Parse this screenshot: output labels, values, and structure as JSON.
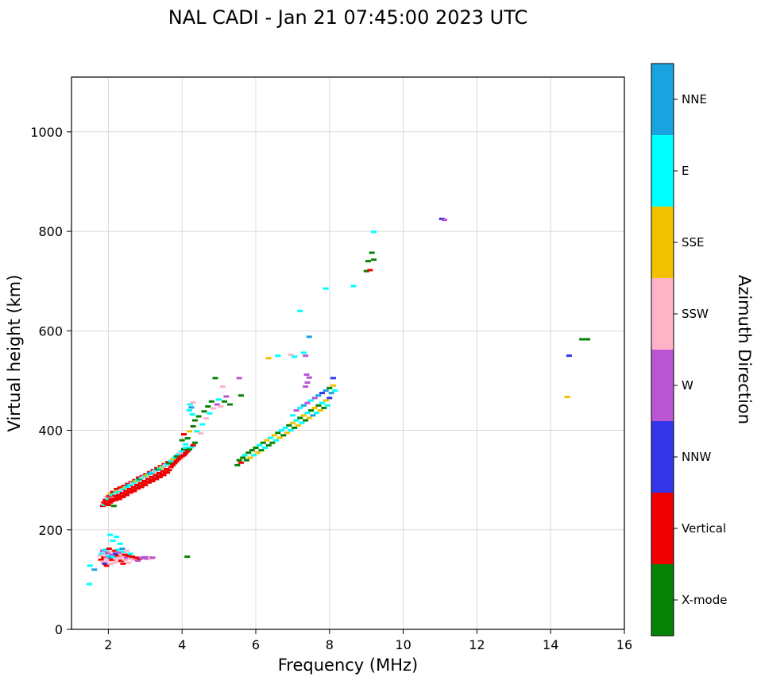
{
  "chart_data": {
    "type": "scatter",
    "title": "NAL CADI - Jan 21 07:45:00 2023 UTC",
    "xlabel": "Frequency (MHz)",
    "ylabel": "Virtual height (km)",
    "colorbar_label": "Azimuth Direction",
    "xlim": [
      1,
      16
    ],
    "ylim": [
      0,
      1110
    ],
    "xticks": [
      2,
      4,
      6,
      8,
      10,
      12,
      14,
      16
    ],
    "yticks": [
      0,
      200,
      400,
      600,
      800,
      1000
    ],
    "grid": true,
    "marker": "horizontal-dash",
    "palette": [
      {
        "key": "NNE",
        "color": "#19a3e1"
      },
      {
        "key": "E",
        "color": "#00ffff"
      },
      {
        "key": "SSE",
        "color": "#f2c200"
      },
      {
        "key": "SSW",
        "color": "#ffb3c6"
      },
      {
        "key": "W",
        "color": "#ba55d3"
      },
      {
        "key": "NNW",
        "color": "#3434e8"
      },
      {
        "key": "Vertical",
        "color": "#ee0000"
      },
      {
        "key": "X-mode",
        "color": "#068206"
      }
    ],
    "points": [
      [
        1.48,
        91,
        1
      ],
      [
        1.5,
        128,
        1
      ],
      [
        1.62,
        120,
        0
      ],
      [
        1.78,
        148,
        3
      ],
      [
        1.8,
        140,
        6
      ],
      [
        1.82,
        152,
        1
      ],
      [
        1.85,
        136,
        3
      ],
      [
        1.85,
        158,
        4
      ],
      [
        1.88,
        144,
        6
      ],
      [
        1.9,
        132,
        5
      ],
      [
        1.9,
        150,
        3
      ],
      [
        1.92,
        160,
        1
      ],
      [
        1.95,
        142,
        3
      ],
      [
        1.95,
        128,
        6
      ],
      [
        1.98,
        154,
        4
      ],
      [
        2.0,
        138,
        3
      ],
      [
        2.0,
        148,
        1
      ],
      [
        2.02,
        162,
        6
      ],
      [
        2.05,
        132,
        3
      ],
      [
        2.05,
        144,
        0
      ],
      [
        2.05,
        190,
        1
      ],
      [
        2.08,
        156,
        3
      ],
      [
        2.1,
        140,
        6
      ],
      [
        2.1,
        150,
        4
      ],
      [
        2.12,
        178,
        1
      ],
      [
        2.15,
        134,
        3
      ],
      [
        2.15,
        146,
        1
      ],
      [
        2.18,
        158,
        6
      ],
      [
        2.2,
        142,
        3
      ],
      [
        2.2,
        152,
        5
      ],
      [
        2.22,
        186,
        1
      ],
      [
        2.25,
        136,
        3
      ],
      [
        2.25,
        148,
        6
      ],
      [
        2.28,
        160,
        1
      ],
      [
        2.3,
        144,
        3
      ],
      [
        2.3,
        154,
        4
      ],
      [
        2.32,
        172,
        1
      ],
      [
        2.35,
        138,
        6
      ],
      [
        2.35,
        150,
        3
      ],
      [
        2.38,
        162,
        0
      ],
      [
        2.4,
        146,
        3
      ],
      [
        2.4,
        132,
        6
      ],
      [
        2.42,
        156,
        1
      ],
      [
        2.45,
        140,
        3
      ],
      [
        2.45,
        150,
        6
      ],
      [
        2.5,
        144,
        4
      ],
      [
        2.5,
        158,
        3
      ],
      [
        2.55,
        148,
        6
      ],
      [
        2.55,
        134,
        3
      ],
      [
        2.6,
        152,
        1
      ],
      [
        2.6,
        142,
        3
      ],
      [
        2.65,
        146,
        6
      ],
      [
        2.7,
        140,
        3
      ],
      [
        2.75,
        144,
        6
      ],
      [
        2.8,
        138,
        4
      ],
      [
        2.85,
        142,
        6
      ],
      [
        2.9,
        144,
        4
      ],
      [
        2.95,
        143,
        4
      ],
      [
        3.0,
        145,
        4
      ],
      [
        3.05,
        142,
        4
      ],
      [
        3.1,
        144,
        4
      ],
      [
        3.15,
        143,
        3
      ],
      [
        3.2,
        144,
        4
      ],
      [
        4.14,
        146,
        7
      ],
      [
        1.85,
        248,
        6
      ],
      [
        1.88,
        255,
        6
      ],
      [
        1.9,
        250,
        1
      ],
      [
        1.92,
        260,
        6
      ],
      [
        1.95,
        252,
        6
      ],
      [
        1.95,
        266,
        3
      ],
      [
        1.98,
        258,
        6
      ],
      [
        2.0,
        250,
        6
      ],
      [
        2.0,
        262,
        1
      ],
      [
        2.02,
        268,
        6
      ],
      [
        2.05,
        255,
        6
      ],
      [
        2.05,
        272,
        2
      ],
      [
        2.08,
        262,
        6
      ],
      [
        2.1,
        258,
        6
      ],
      [
        2.1,
        270,
        1
      ],
      [
        2.12,
        276,
        6
      ],
      [
        2.15,
        262,
        6
      ],
      [
        2.15,
        248,
        7
      ],
      [
        2.18,
        268,
        6
      ],
      [
        2.2,
        260,
        6
      ],
      [
        2.2,
        275,
        1
      ],
      [
        2.22,
        282,
        6
      ],
      [
        2.25,
        265,
        6
      ],
      [
        2.25,
        278,
        2
      ],
      [
        2.28,
        270,
        6
      ],
      [
        2.3,
        262,
        6
      ],
      [
        2.3,
        278,
        1
      ],
      [
        2.32,
        285,
        6
      ],
      [
        2.35,
        268,
        6
      ],
      [
        2.35,
        280,
        3
      ],
      [
        2.38,
        274,
        6
      ],
      [
        2.4,
        266,
        6
      ],
      [
        2.4,
        282,
        1
      ],
      [
        2.42,
        288,
        6
      ],
      [
        2.45,
        272,
        6
      ],
      [
        2.45,
        285,
        2
      ],
      [
        2.48,
        278,
        6
      ],
      [
        2.5,
        270,
        6
      ],
      [
        2.5,
        286,
        1
      ],
      [
        2.52,
        292,
        6
      ],
      [
        2.55,
        276,
        6
      ],
      [
        2.55,
        290,
        0
      ],
      [
        2.58,
        282,
        6
      ],
      [
        2.6,
        275,
        6
      ],
      [
        2.6,
        290,
        1
      ],
      [
        2.62,
        296,
        6
      ],
      [
        2.65,
        280,
        6
      ],
      [
        2.65,
        294,
        3
      ],
      [
        2.68,
        286,
        6
      ],
      [
        2.7,
        278,
        6
      ],
      [
        2.7,
        295,
        1
      ],
      [
        2.72,
        300,
        6
      ],
      [
        2.75,
        284,
        6
      ],
      [
        2.75,
        298,
        2
      ],
      [
        2.78,
        290,
        6
      ],
      [
        2.8,
        283,
        6
      ],
      [
        2.8,
        300,
        1
      ],
      [
        2.82,
        305,
        6
      ],
      [
        2.85,
        288,
        6
      ],
      [
        2.85,
        302,
        7
      ],
      [
        2.88,
        294,
        6
      ],
      [
        2.9,
        286,
        6
      ],
      [
        2.9,
        304,
        1
      ],
      [
        2.92,
        308,
        6
      ],
      [
        2.95,
        292,
        6
      ],
      [
        2.95,
        306,
        3
      ],
      [
        2.98,
        298,
        6
      ],
      [
        3.0,
        290,
        6
      ],
      [
        3.0,
        308,
        1
      ],
      [
        3.02,
        312,
        6
      ],
      [
        3.05,
        296,
        6
      ],
      [
        3.05,
        310,
        2
      ],
      [
        3.08,
        302,
        6
      ],
      [
        3.1,
        295,
        6
      ],
      [
        3.1,
        312,
        1
      ],
      [
        3.12,
        316,
        6
      ],
      [
        3.15,
        300,
        6
      ],
      [
        3.15,
        314,
        0
      ],
      [
        3.18,
        306,
        6
      ],
      [
        3.2,
        298,
        6
      ],
      [
        3.2,
        316,
        1
      ],
      [
        3.22,
        320,
        6
      ],
      [
        3.25,
        304,
        6
      ],
      [
        3.25,
        318,
        3
      ],
      [
        3.28,
        310,
        6
      ],
      [
        3.3,
        302,
        6
      ],
      [
        3.3,
        320,
        1
      ],
      [
        3.32,
        324,
        6
      ],
      [
        3.35,
        308,
        6
      ],
      [
        3.35,
        322,
        7
      ],
      [
        3.38,
        314,
        6
      ],
      [
        3.4,
        306,
        6
      ],
      [
        3.4,
        324,
        1
      ],
      [
        3.42,
        328,
        6
      ],
      [
        3.45,
        312,
        6
      ],
      [
        3.45,
        326,
        2
      ],
      [
        3.48,
        318,
        6
      ],
      [
        3.5,
        310,
        6
      ],
      [
        3.5,
        328,
        1
      ],
      [
        3.52,
        332,
        6
      ],
      [
        3.55,
        316,
        6
      ],
      [
        3.55,
        330,
        3
      ],
      [
        3.58,
        322,
        6
      ],
      [
        3.6,
        315,
        6
      ],
      [
        3.6,
        332,
        1
      ],
      [
        3.62,
        336,
        6
      ],
      [
        3.65,
        320,
        6
      ],
      [
        3.65,
        334,
        7
      ],
      [
        3.7,
        326,
        6
      ],
      [
        3.7,
        338,
        1
      ],
      [
        3.75,
        330,
        6
      ],
      [
        3.75,
        342,
        2
      ],
      [
        3.8,
        334,
        6
      ],
      [
        3.8,
        345,
        1
      ],
      [
        3.85,
        338,
        6
      ],
      [
        3.85,
        348,
        7
      ],
      [
        3.9,
        342,
        6
      ],
      [
        3.9,
        352,
        1
      ],
      [
        3.95,
        345,
        6
      ],
      [
        3.95,
        355,
        3
      ],
      [
        4.0,
        348,
        6
      ],
      [
        4.0,
        358,
        1
      ],
      [
        4.05,
        350,
        6
      ],
      [
        4.05,
        362,
        7
      ],
      [
        4.1,
        354,
        6
      ],
      [
        4.1,
        365,
        1
      ],
      [
        4.15,
        358,
        6
      ],
      [
        4.2,
        362,
        7
      ],
      [
        4.25,
        366,
        1
      ],
      [
        4.3,
        370,
        6
      ],
      [
        4.35,
        375,
        7
      ],
      [
        4.0,
        380,
        7
      ],
      [
        4.05,
        392,
        6
      ],
      [
        4.1,
        372,
        1
      ],
      [
        4.15,
        384,
        7
      ],
      [
        4.2,
        398,
        2
      ],
      [
        4.2,
        440,
        1
      ],
      [
        4.22,
        452,
        1
      ],
      [
        4.25,
        446,
        0
      ],
      [
        4.28,
        432,
        1
      ],
      [
        4.3,
        456,
        3
      ],
      [
        4.3,
        408,
        7
      ],
      [
        4.35,
        420,
        7
      ],
      [
        4.4,
        398,
        1
      ],
      [
        4.45,
        428,
        7
      ],
      [
        4.5,
        394,
        3
      ],
      [
        4.55,
        412,
        1
      ],
      [
        4.6,
        438,
        7
      ],
      [
        4.65,
        424,
        3
      ],
      [
        4.7,
        448,
        7
      ],
      [
        4.75,
        434,
        1
      ],
      [
        4.8,
        458,
        7
      ],
      [
        4.85,
        444,
        3
      ],
      [
        4.9,
        505,
        7
      ],
      [
        4.95,
        452,
        4
      ],
      [
        5.0,
        462,
        1
      ],
      [
        5.05,
        448,
        3
      ],
      [
        5.1,
        488,
        3
      ],
      [
        5.15,
        458,
        7
      ],
      [
        5.2,
        468,
        4
      ],
      [
        5.3,
        452,
        7
      ],
      [
        5.55,
        505,
        4
      ],
      [
        5.6,
        470,
        7
      ],
      [
        5.5,
        330,
        7
      ],
      [
        5.55,
        340,
        7
      ],
      [
        5.6,
        335,
        6
      ],
      [
        5.65,
        345,
        7
      ],
      [
        5.7,
        350,
        1
      ],
      [
        5.75,
        340,
        7
      ],
      [
        5.8,
        355,
        7
      ],
      [
        5.85,
        345,
        2
      ],
      [
        5.9,
        360,
        7
      ],
      [
        5.95,
        350,
        1
      ],
      [
        6.0,
        365,
        7
      ],
      [
        6.05,
        355,
        2
      ],
      [
        6.1,
        370,
        1
      ],
      [
        6.15,
        360,
        7
      ],
      [
        6.2,
        375,
        7
      ],
      [
        6.25,
        365,
        1
      ],
      [
        6.3,
        380,
        2
      ],
      [
        6.35,
        370,
        7
      ],
      [
        6.4,
        385,
        1
      ],
      [
        6.45,
        375,
        7
      ],
      [
        6.5,
        390,
        2
      ],
      [
        6.55,
        380,
        1
      ],
      [
        6.6,
        395,
        7
      ],
      [
        6.65,
        385,
        2
      ],
      [
        6.7,
        400,
        1
      ],
      [
        6.75,
        390,
        7
      ],
      [
        6.8,
        405,
        1
      ],
      [
        6.85,
        395,
        2
      ],
      [
        6.9,
        410,
        7
      ],
      [
        6.95,
        400,
        1
      ],
      [
        7.0,
        415,
        2
      ],
      [
        7.0,
        430,
        1
      ],
      [
        7.05,
        405,
        7
      ],
      [
        7.1,
        420,
        1
      ],
      [
        7.1,
        440,
        4
      ],
      [
        7.15,
        410,
        2
      ],
      [
        7.2,
        425,
        7
      ],
      [
        7.2,
        445,
        1
      ],
      [
        7.25,
        415,
        1
      ],
      [
        7.3,
        430,
        2
      ],
      [
        7.3,
        450,
        0
      ],
      [
        7.35,
        420,
        7
      ],
      [
        7.4,
        435,
        1
      ],
      [
        7.4,
        455,
        4
      ],
      [
        7.45,
        425,
        2
      ],
      [
        7.5,
        440,
        7
      ],
      [
        7.5,
        460,
        1
      ],
      [
        7.55,
        430,
        0
      ],
      [
        7.6,
        445,
        2
      ],
      [
        7.6,
        465,
        4
      ],
      [
        7.65,
        435,
        1
      ],
      [
        7.7,
        450,
        7
      ],
      [
        7.7,
        470,
        0
      ],
      [
        7.75,
        440,
        2
      ],
      [
        7.8,
        455,
        1
      ],
      [
        7.8,
        475,
        5
      ],
      [
        7.85,
        445,
        7
      ],
      [
        7.9,
        460,
        2
      ],
      [
        7.9,
        480,
        0
      ],
      [
        7.95,
        450,
        1
      ],
      [
        8.0,
        465,
        5
      ],
      [
        8.0,
        485,
        7
      ],
      [
        8.05,
        475,
        0
      ],
      [
        8.1,
        490,
        2
      ],
      [
        8.1,
        505,
        5
      ],
      [
        8.15,
        480,
        1
      ],
      [
        7.35,
        488,
        4
      ],
      [
        7.4,
        496,
        4
      ],
      [
        7.45,
        506,
        4
      ],
      [
        7.38,
        512,
        4
      ],
      [
        6.35,
        545,
        2
      ],
      [
        6.6,
        550,
        1
      ],
      [
        6.95,
        552,
        3
      ],
      [
        7.05,
        548,
        1
      ],
      [
        7.3,
        556,
        1
      ],
      [
        7.35,
        550,
        4
      ],
      [
        7.45,
        588,
        0
      ],
      [
        7.2,
        640,
        1
      ],
      [
        7.9,
        685,
        1
      ],
      [
        8.65,
        690,
        1
      ],
      [
        9.0,
        720,
        7
      ],
      [
        9.1,
        722,
        6
      ],
      [
        9.05,
        740,
        7
      ],
      [
        9.2,
        743,
        7
      ],
      [
        9.15,
        757,
        7
      ],
      [
        9.2,
        799,
        1
      ],
      [
        11.05,
        825,
        5
      ],
      [
        11.12,
        823,
        4
      ],
      [
        14.5,
        550,
        5
      ],
      [
        14.45,
        467,
        2
      ],
      [
        14.85,
        583,
        7
      ],
      [
        15.0,
        583,
        7
      ]
    ]
  }
}
